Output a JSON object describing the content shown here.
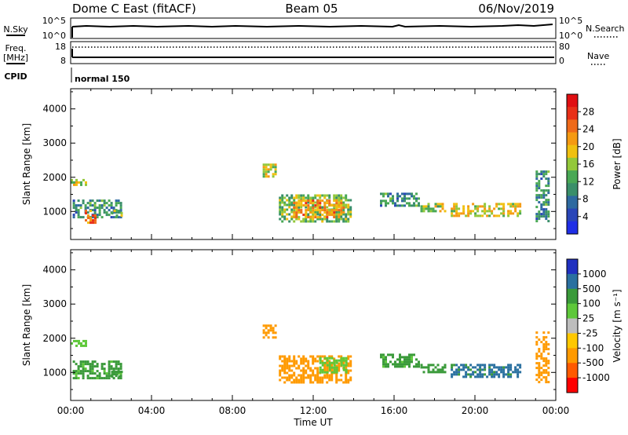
{
  "header": {
    "station": "Dome C East (fitACF)",
    "beam": "Beam 05",
    "date": "06/Nov/2019"
  },
  "status_panel": {
    "nsky_label": "N.Sky",
    "nsearch_label": "N.Search",
    "freq_label_line1": "Freq.",
    "freq_label_line2": "[MHz]",
    "nave_label": "Nave",
    "cpid_label": "CPID",
    "cpid_value": "normal 150",
    "noise_ticks": [
      "10^5",
      "10^0"
    ],
    "freq_ticks": [
      "18",
      "8"
    ],
    "nave_ticks": [
      "80",
      "0"
    ]
  },
  "colors": {
    "power_scale": [
      "#1f2ee6",
      "#2a46b8",
      "#2e6aa0",
      "#3a8f6a",
      "#49a855",
      "#93c83a",
      "#f0c010",
      "#f59a12",
      "#ef6a1a",
      "#e83018",
      "#e00f12"
    ],
    "velocity_scale": [
      "#ff0000",
      "#ff5a00",
      "#ff9a00",
      "#ffc800",
      "#bdbdbd",
      "#5ec83a",
      "#3a9a3a",
      "#2a70a0",
      "#2030c0"
    ]
  },
  "chart_data": [
    {
      "type": "heatmap",
      "name": "power",
      "ylabel": "Slant Range [km]",
      "xlabel": "Time UT",
      "x_ticks": [
        "00:00",
        "04:00",
        "08:00",
        "12:00",
        "16:00",
        "20:00",
        "00:00"
      ],
      "x_range_hours": [
        0,
        24
      ],
      "y_ticks": [
        1000,
        2000,
        3000,
        4000
      ],
      "ylim": [
        180,
        4590
      ],
      "colorbar": {
        "label": "Power [dB]",
        "ticks": [
          4,
          8,
          12,
          16,
          20,
          24,
          28
        ],
        "range": [
          0,
          32
        ]
      },
      "regions": [
        {
          "t0": 0.0,
          "t1": 0.8,
          "r0": 1750,
          "r1": 1950,
          "value": 18
        },
        {
          "t0": 0.1,
          "t1": 2.5,
          "r0": 800,
          "r1": 1350,
          "value": 10
        },
        {
          "t0": 0.7,
          "t1": 1.2,
          "r0": 650,
          "r1": 1050,
          "value": 24
        },
        {
          "t0": 2.0,
          "t1": 2.5,
          "r0": 850,
          "r1": 1050,
          "value": 14
        },
        {
          "t0": 9.5,
          "t1": 10.1,
          "r0": 2050,
          "r1": 2400,
          "value": 18
        },
        {
          "t0": 10.3,
          "t1": 13.9,
          "r0": 700,
          "r1": 1500,
          "value": 14
        },
        {
          "t0": 11.0,
          "t1": 13.5,
          "r0": 850,
          "r1": 1350,
          "value": 22
        },
        {
          "t0": 15.3,
          "t1": 17.2,
          "r0": 1150,
          "r1": 1550,
          "value": 10
        },
        {
          "t0": 17.3,
          "t1": 18.5,
          "r0": 1000,
          "r1": 1250,
          "value": 16
        },
        {
          "t0": 18.8,
          "t1": 22.2,
          "r0": 900,
          "r1": 1250,
          "value": 18
        },
        {
          "t0": 23.0,
          "t1": 23.6,
          "r0": 700,
          "r1": 2200,
          "value": 10
        }
      ]
    },
    {
      "type": "heatmap",
      "name": "velocity",
      "ylabel": "Slant Range [km]",
      "xlabel": "Time UT",
      "x_ticks": [
        "00:00",
        "04:00",
        "08:00",
        "12:00",
        "16:00",
        "20:00",
        "00:00"
      ],
      "x_range_hours": [
        0,
        24
      ],
      "y_ticks": [
        1000,
        2000,
        3000,
        4000
      ],
      "ylim": [
        180,
        4590
      ],
      "colorbar": {
        "label": "Velocity [m s⁻¹]",
        "ticks": [
          1000,
          500,
          100,
          25,
          -25,
          -100,
          -500,
          -1000
        ]
      },
      "regions": [
        {
          "t0": 0.0,
          "t1": 0.8,
          "r0": 1750,
          "r1": 1950,
          "value": 60
        },
        {
          "t0": 0.1,
          "t1": 2.5,
          "r0": 800,
          "r1": 1350,
          "value": 120
        },
        {
          "t0": 2.0,
          "t1": 2.5,
          "r0": 850,
          "r1": 1050,
          "value": 300
        },
        {
          "t0": 9.5,
          "t1": 10.1,
          "r0": 2050,
          "r1": 2400,
          "value": -300
        },
        {
          "t0": 10.3,
          "t1": 13.9,
          "r0": 700,
          "r1": 1500,
          "value": -300
        },
        {
          "t0": 12.3,
          "t1": 13.6,
          "r0": 1000,
          "r1": 1450,
          "value": 60
        },
        {
          "t0": 15.3,
          "t1": 17.2,
          "r0": 1150,
          "r1": 1550,
          "value": 150
        },
        {
          "t0": 17.3,
          "t1": 18.5,
          "r0": 1000,
          "r1": 1250,
          "value": 200
        },
        {
          "t0": 18.8,
          "t1": 22.2,
          "r0": 900,
          "r1": 1250,
          "value": 700
        },
        {
          "t0": 23.0,
          "t1": 23.6,
          "r0": 700,
          "r1": 2200,
          "value": -200
        }
      ]
    }
  ]
}
